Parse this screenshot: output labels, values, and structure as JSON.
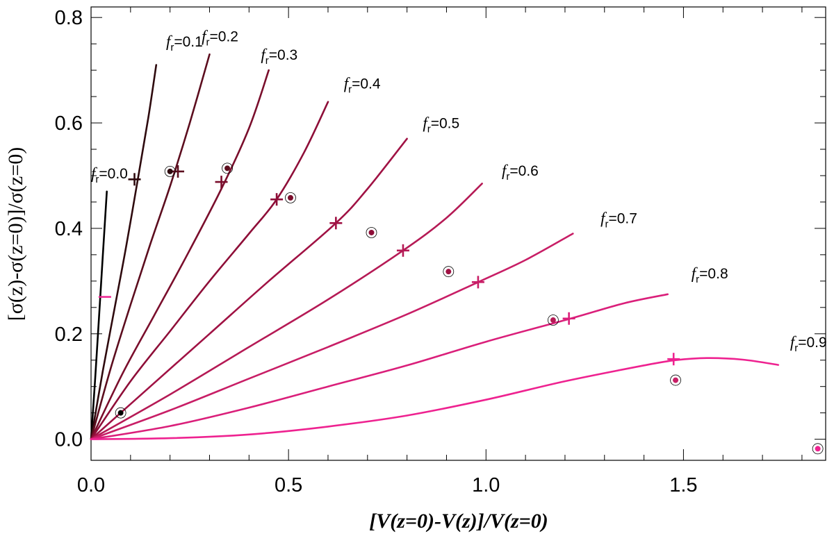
{
  "chart_data": {
    "type": "line",
    "title": "",
    "xlabel": "[V(z=0)-V(z)]/V(z=0)",
    "ylabel": "[σ(z)-σ(z=0)]/σ(z=0)",
    "xlim": [
      0.0,
      1.86
    ],
    "ylim": [
      -0.04,
      0.82
    ],
    "x_ticks": [
      0.0,
      0.5,
      1.0,
      1.5
    ],
    "x_tick_labels": [
      "0.0",
      "0.5",
      "1.0",
      "1.5"
    ],
    "y_ticks": [
      0.0,
      0.2,
      0.4,
      0.6,
      0.8
    ],
    "y_tick_labels": [
      "0.0",
      "0.2",
      "0.4",
      "0.6",
      "0.8"
    ],
    "grid": false,
    "label_prefix": "f",
    "label_sub": "r",
    "series": [
      {
        "name": "fr=0.0",
        "label_value": "=0.0",
        "color": "#000000",
        "x": [
          0.0,
          0.01,
          0.02,
          0.03,
          0.04
        ],
        "y": [
          0.0,
          0.11,
          0.23,
          0.35,
          0.47
        ]
      },
      {
        "name": "fr=0.1",
        "label_value": "=0.1",
        "color": "#2e0a0e",
        "x": [
          0.0,
          0.03,
          0.06,
          0.09,
          0.12,
          0.145,
          0.165
        ],
        "y": [
          0.0,
          0.13,
          0.25,
          0.37,
          0.5,
          0.61,
          0.71
        ]
      },
      {
        "name": "fr=0.2",
        "label_value": "=0.2",
        "color": "#5c0d1e",
        "x": [
          0.0,
          0.05,
          0.1,
          0.15,
          0.2,
          0.25,
          0.3
        ],
        "y": [
          0.0,
          0.135,
          0.255,
          0.37,
          0.48,
          0.6,
          0.73
        ]
      },
      {
        "name": "fr=0.3",
        "label_value": "=0.3",
        "color": "#7a0e2c",
        "x": [
          0.0,
          0.08,
          0.16,
          0.24,
          0.33,
          0.4,
          0.45
        ],
        "y": [
          0.0,
          0.125,
          0.235,
          0.345,
          0.475,
          0.59,
          0.7
        ]
      },
      {
        "name": "fr=0.4",
        "label_value": "=0.4",
        "color": "#8e0e38",
        "x": [
          0.0,
          0.1,
          0.2,
          0.3,
          0.4,
          0.47,
          0.54,
          0.6
        ],
        "y": [
          0.0,
          0.11,
          0.205,
          0.3,
          0.39,
          0.455,
          0.545,
          0.64
        ]
      },
      {
        "name": "fr=0.5",
        "label_value": "=0.5",
        "color": "#a01244",
        "x": [
          0.0,
          0.15,
          0.3,
          0.45,
          0.62,
          0.7,
          0.8
        ],
        "y": [
          0.0,
          0.1,
          0.2,
          0.3,
          0.41,
          0.475,
          0.57
        ]
      },
      {
        "name": "fr=0.6",
        "label_value": "=0.6",
        "color": "#b51a55",
        "x": [
          0.0,
          0.2,
          0.4,
          0.6,
          0.79,
          0.9,
          0.99
        ],
        "y": [
          0.0,
          0.085,
          0.175,
          0.265,
          0.358,
          0.42,
          0.485
        ]
      },
      {
        "name": "fr=0.7",
        "label_value": "=0.7",
        "color": "#c81e66",
        "x": [
          0.0,
          0.2,
          0.4,
          0.6,
          0.8,
          0.98,
          1.1,
          1.22
        ],
        "y": [
          0.0,
          0.055,
          0.115,
          0.175,
          0.237,
          0.298,
          0.34,
          0.39
        ]
      },
      {
        "name": "fr=0.8",
        "label_value": "=0.8",
        "color": "#da1f7a",
        "x": [
          0.0,
          0.2,
          0.4,
          0.6,
          0.8,
          1.0,
          1.21,
          1.35,
          1.46
        ],
        "y": [
          0.0,
          0.025,
          0.06,
          0.1,
          0.14,
          0.185,
          0.228,
          0.258,
          0.275
        ]
      },
      {
        "name": "fr=0.9",
        "label_value": "=0.9",
        "color": "#ee2290",
        "x": [
          0.0,
          0.2,
          0.4,
          0.6,
          0.8,
          1.0,
          1.2,
          1.4,
          1.48,
          1.56,
          1.65,
          1.74
        ],
        "y": [
          0.0,
          0.002,
          0.009,
          0.024,
          0.045,
          0.075,
          0.11,
          0.14,
          0.15,
          0.154,
          0.151,
          0.141
        ]
      }
    ],
    "curve_labels": [
      {
        "series": 0,
        "x": 0.0,
        "y": 0.495
      },
      {
        "series": 1,
        "x": 0.19,
        "y": 0.745
      },
      {
        "series": 2,
        "x": 0.28,
        "y": 0.755
      },
      {
        "series": 3,
        "x": 0.43,
        "y": 0.72
      },
      {
        "series": 4,
        "x": 0.64,
        "y": 0.665
      },
      {
        "series": 5,
        "x": 0.84,
        "y": 0.59
      },
      {
        "series": 6,
        "x": 1.04,
        "y": 0.5
      },
      {
        "series": 7,
        "x": 1.29,
        "y": 0.41
      },
      {
        "series": 8,
        "x": 1.52,
        "y": 0.305
      },
      {
        "series": 9,
        "x": 1.77,
        "y": 0.175
      }
    ],
    "cross_markers": [
      {
        "series": 0,
        "x": 0.035,
        "y": 0.27,
        "color": "#ee2290",
        "style": "h"
      },
      {
        "series": 1,
        "x": 0.11,
        "y": 0.493
      },
      {
        "series": 2,
        "x": 0.22,
        "y": 0.508
      },
      {
        "series": 3,
        "x": 0.33,
        "y": 0.488
      },
      {
        "series": 4,
        "x": 0.47,
        "y": 0.455
      },
      {
        "series": 5,
        "x": 0.62,
        "y": 0.41
      },
      {
        "series": 6,
        "x": 0.79,
        "y": 0.358
      },
      {
        "series": 7,
        "x": 0.98,
        "y": 0.298
      },
      {
        "series": 8,
        "x": 1.21,
        "y": 0.229
      },
      {
        "series": 9,
        "x": 1.475,
        "y": 0.152
      }
    ],
    "circle_markers": [
      {
        "series": 0,
        "x": 0.075,
        "y": 0.05
      },
      {
        "series": 1,
        "x": 0.2,
        "y": 0.508
      },
      {
        "series": 2,
        "x": 0.345,
        "y": 0.514
      },
      {
        "series": 3,
        "x": 0.505,
        "y": 0.458
      },
      {
        "series": 4,
        "x": 0.71,
        "y": 0.392
      },
      {
        "series": 5,
        "x": 0.905,
        "y": 0.318
      },
      {
        "series": 6,
        "x": 1.17,
        "y": 0.226
      },
      {
        "series": 7,
        "x": 1.48,
        "y": 0.112
      },
      {
        "series": 9,
        "x": 1.84,
        "y": -0.018
      }
    ]
  }
}
